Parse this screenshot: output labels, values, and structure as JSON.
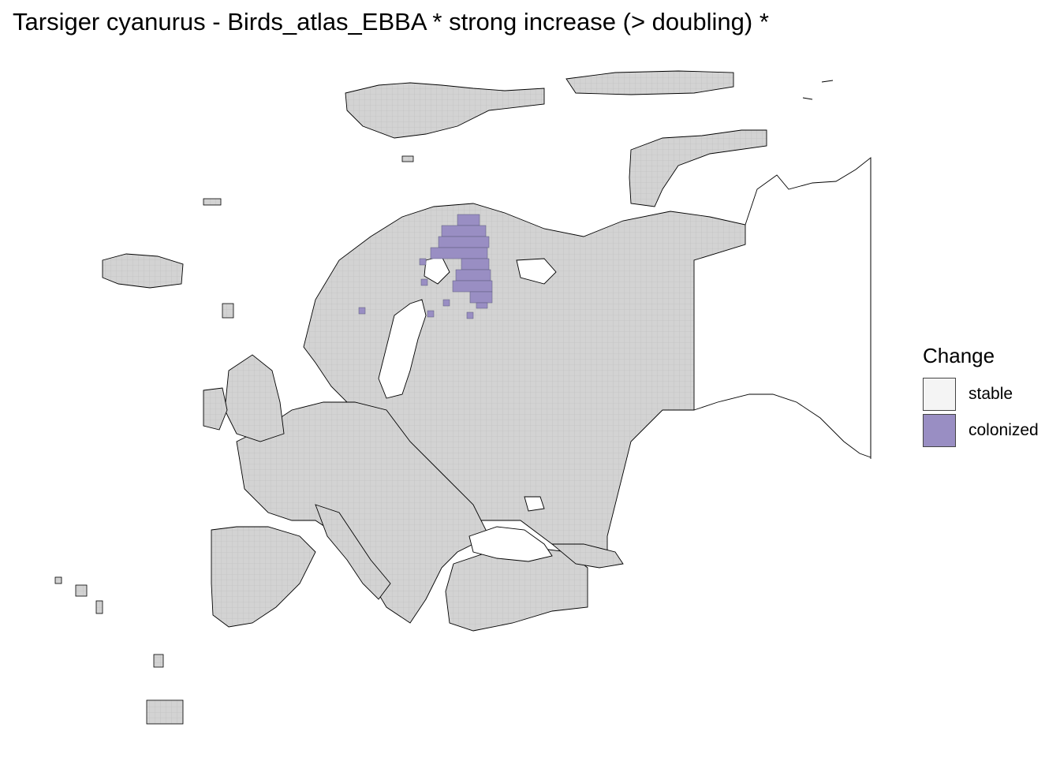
{
  "title": "Tarsiger cyanurus - Birds_atlas_EBBA * strong increase (> doubling) *",
  "legend": {
    "title": "Change",
    "items": [
      {
        "label": "stable",
        "color": "#f4f4f4"
      },
      {
        "label": "colonized",
        "color": "#998ec3"
      }
    ]
  },
  "colors": {
    "grid_fill": "#d3d3d3",
    "grid_line": "#bdbdbd",
    "border": "#000000",
    "colonized": "#998ec3"
  }
}
